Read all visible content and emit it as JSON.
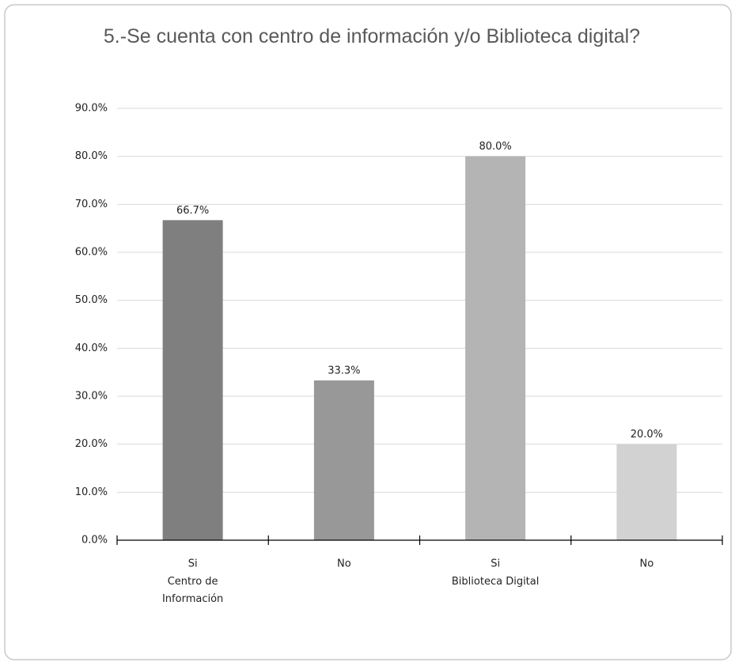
{
  "chart_data": {
    "type": "bar",
    "title": "5.-Se cuenta con centro de información y/o Biblioteca digital?",
    "categories": [
      "Si",
      "No",
      "Si",
      "No"
    ],
    "category_sublabels": [
      "Centro de Información",
      null,
      "Biblioteca Digital",
      null
    ],
    "values": [
      66.7,
      33.3,
      80.0,
      20.0
    ],
    "value_labels": [
      "66.7%",
      "33.3%",
      "80.0%",
      "20.0%"
    ],
    "colors": [
      "#7f7f7f",
      "#989898",
      "#b4b4b4",
      "#d2d2d2"
    ],
    "ylim": [
      0,
      90
    ],
    "yticks": [
      {
        "value": 0,
        "label": "0.0%"
      },
      {
        "value": 10,
        "label": "10.0%"
      },
      {
        "value": 20,
        "label": "20.0%"
      },
      {
        "value": 30,
        "label": "30.0%"
      },
      {
        "value": 40,
        "label": "40.0%"
      },
      {
        "value": 50,
        "label": "50.0%"
      },
      {
        "value": 60,
        "label": "60.0%"
      },
      {
        "value": 70,
        "label": "70.0%"
      },
      {
        "value": 80,
        "label": "80.0%"
      },
      {
        "value": 90,
        "label": "90.0%"
      }
    ],
    "grid": true
  }
}
